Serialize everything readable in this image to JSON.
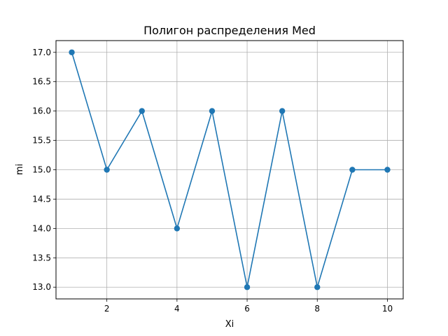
{
  "chart_data": {
    "type": "line",
    "title": "Полигон распределения Med",
    "xlabel": "Xi",
    "ylabel": "mi",
    "x": [
      1,
      2,
      3,
      4,
      5,
      6,
      7,
      8,
      9,
      10
    ],
    "series": [
      {
        "values": [
          17,
          15,
          16,
          14,
          16,
          13,
          16,
          13,
          15,
          15
        ]
      }
    ],
    "xlim": [
      0.55,
      10.45
    ],
    "ylim": [
      12.8,
      17.2
    ],
    "xticks": [
      2,
      4,
      6,
      8,
      10
    ],
    "xtick_labels": [
      "2",
      "4",
      "6",
      "8",
      "10"
    ],
    "yticks": [
      13.0,
      13.5,
      14.0,
      14.5,
      15.0,
      15.5,
      16.0,
      16.5,
      17.0
    ],
    "ytick_labels": [
      "13.0",
      "13.5",
      "14.0",
      "14.5",
      "15.0",
      "15.5",
      "16.0",
      "16.5",
      "17.0"
    ],
    "grid": true,
    "marker": "circle",
    "colors": {
      "line": "#1f77b4",
      "grid": "#b0b0b0",
      "axes": "#000000"
    }
  }
}
